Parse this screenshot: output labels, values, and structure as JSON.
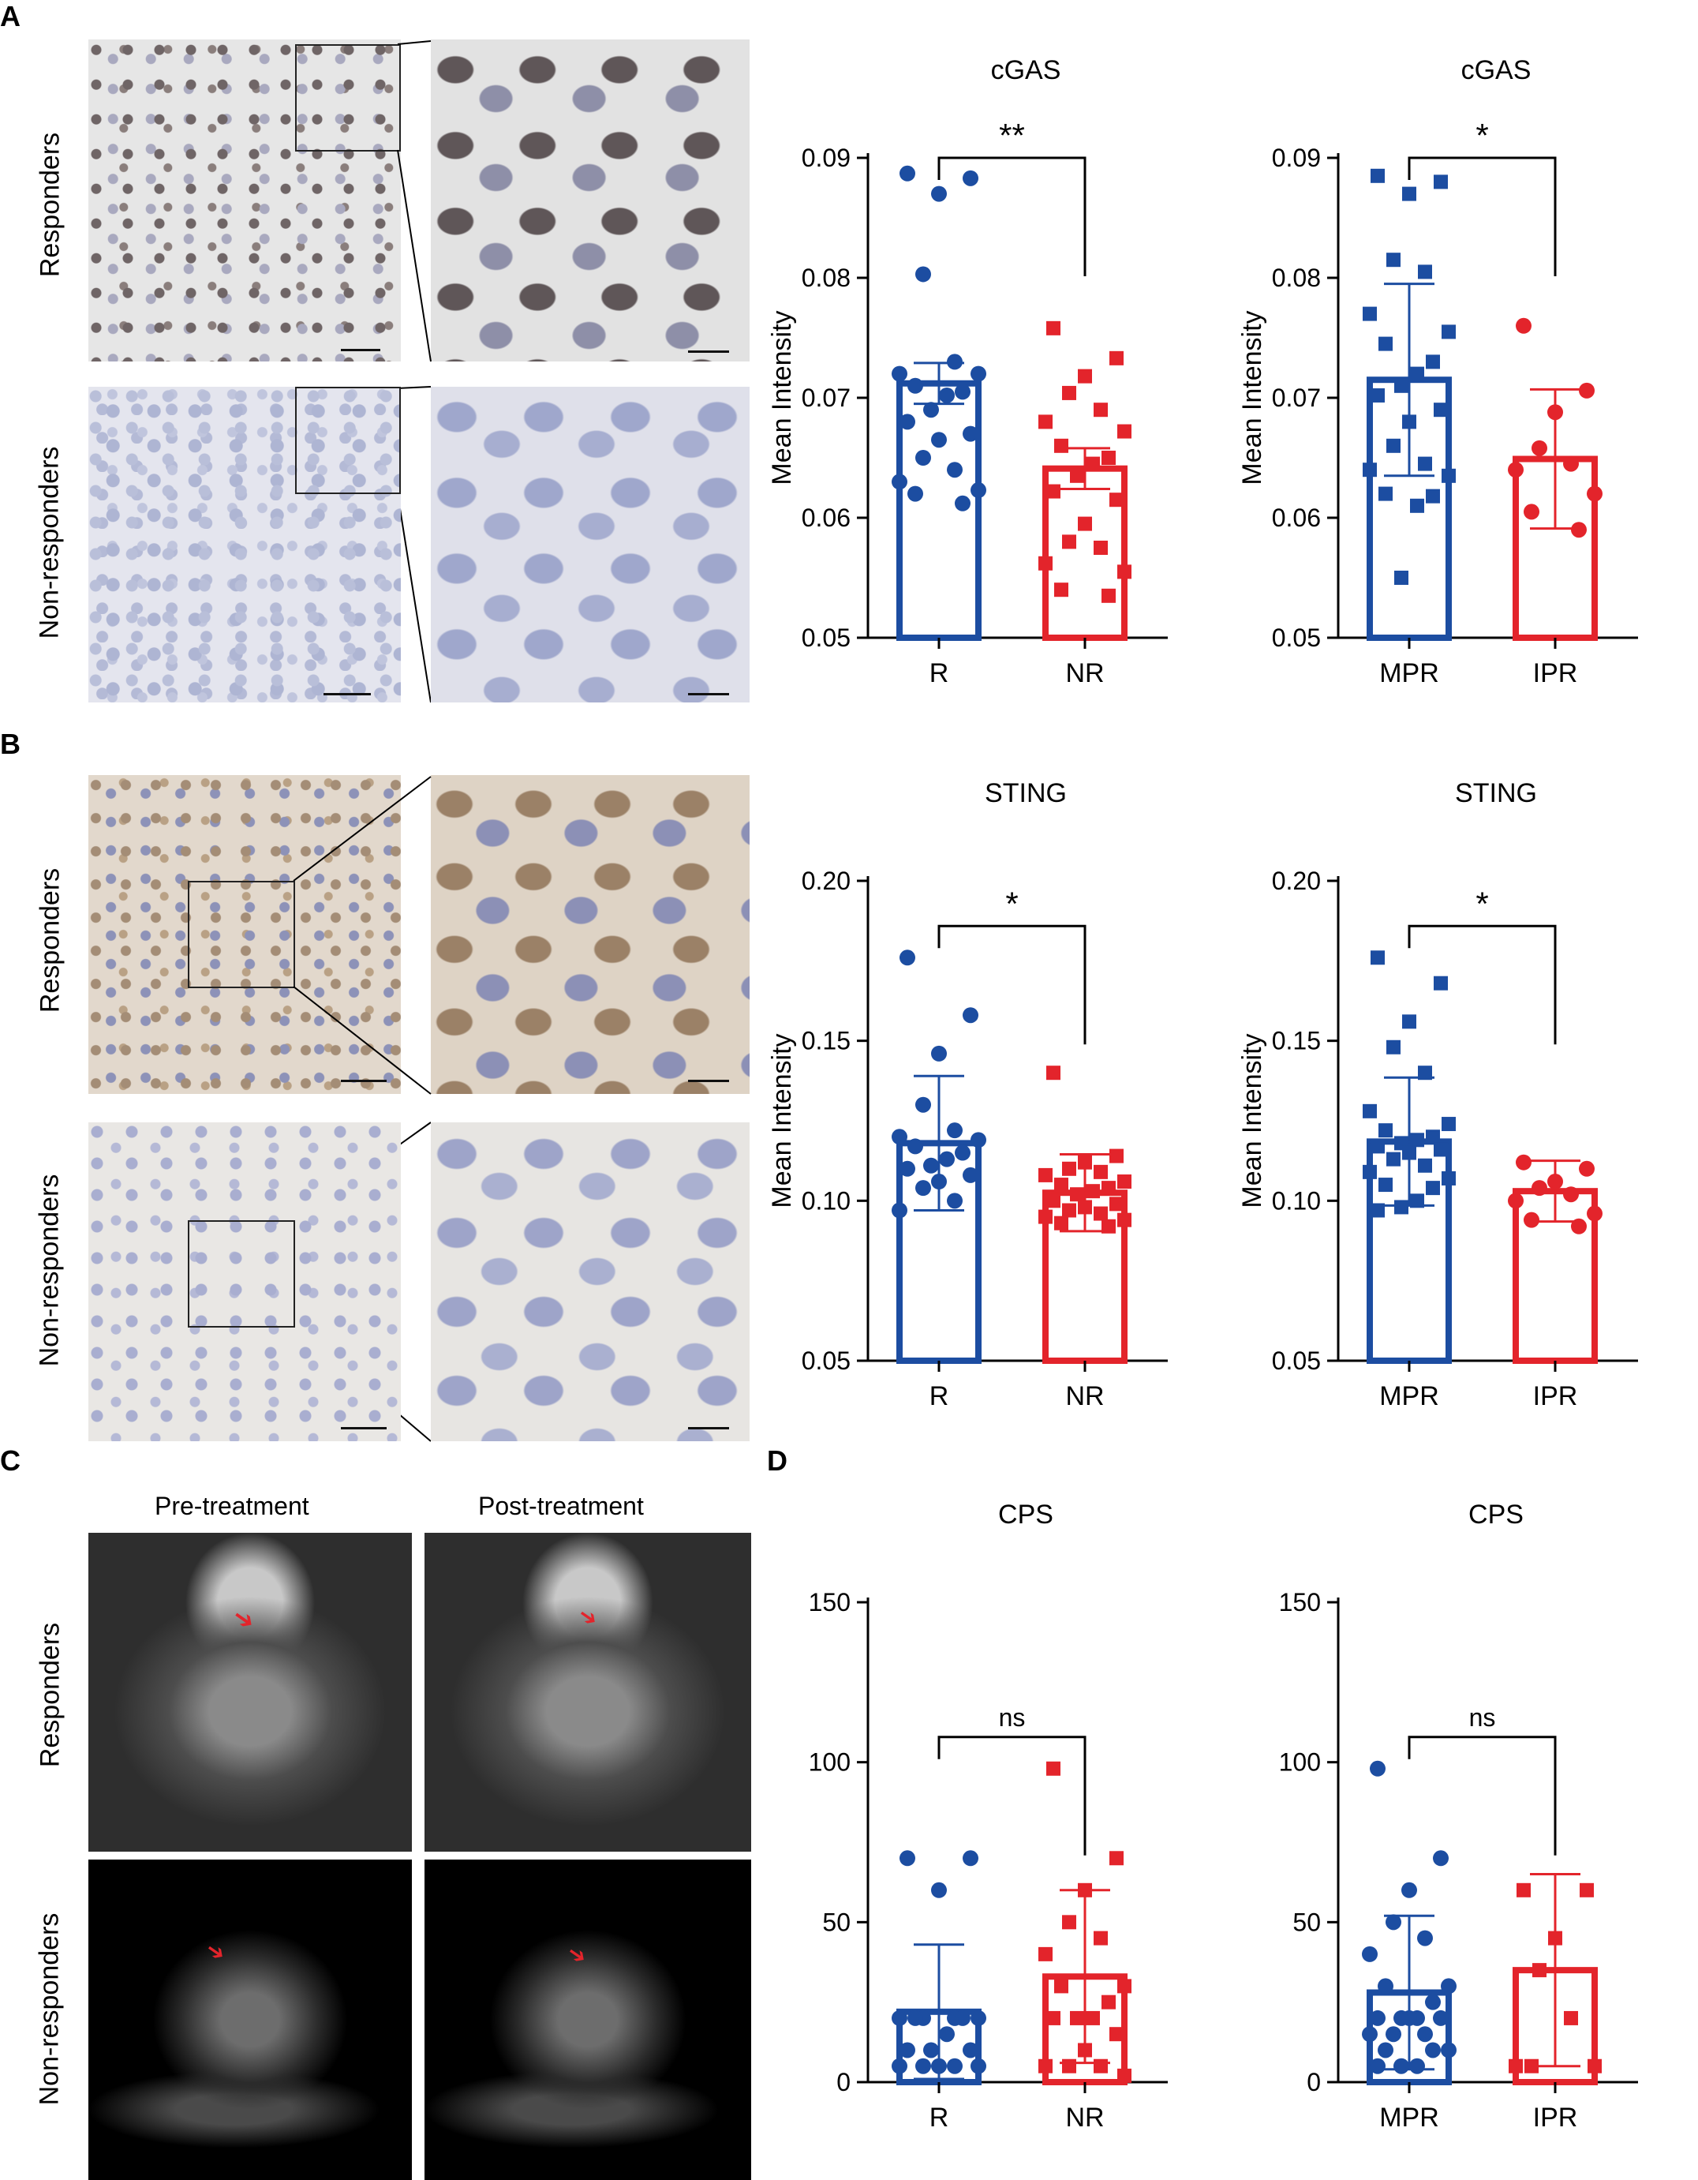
{
  "figure": {
    "panels": {
      "A": {
        "letter": "A",
        "row_labels": [
          "Responders",
          "Non-responders"
        ]
      },
      "B": {
        "letter": "B",
        "row_labels": [
          "Responders",
          "Non-responders"
        ]
      },
      "C": {
        "letter": "C",
        "col_labels": [
          "Pre-treatment",
          "Post-treatment"
        ],
        "row_labels": [
          "Responders",
          "Non-responders"
        ]
      },
      "D": {
        "letter": "D"
      }
    }
  },
  "colors": {
    "blue": "#1c4da1",
    "red": "#e3242b"
  },
  "chart_data": [
    {
      "id": "cgas_r_nr",
      "type": "bar",
      "title": "cGAS",
      "ylabel": "Mean Intensity",
      "categories": [
        "R",
        "NR"
      ],
      "markers": [
        "circle",
        "square"
      ],
      "ylim": [
        0.05,
        0.09
      ],
      "yticks": [
        "0.05",
        "0.06",
        "0.07",
        "0.08",
        "0.09"
      ],
      "means": [
        0.0712,
        0.0641
      ],
      "err": [
        0.0017,
        0.0017
      ],
      "significance": "**",
      "points": [
        [
          0.0887,
          0.0883,
          0.087,
          0.0803,
          0.073,
          0.072,
          0.072,
          0.071,
          0.0705,
          0.0702,
          0.069,
          0.068,
          0.067,
          0.0665,
          0.065,
          0.064,
          0.063,
          0.0623,
          0.062,
          0.0612
        ],
        [
          0.0758,
          0.0733,
          0.0718,
          0.0704,
          0.069,
          0.068,
          0.0672,
          0.066,
          0.065,
          0.0645,
          0.0635,
          0.0622,
          0.0615,
          0.0595,
          0.058,
          0.0575,
          0.0562,
          0.0555,
          0.054,
          0.0535
        ]
      ]
    },
    {
      "id": "cgas_mpr_ipr",
      "type": "bar",
      "title": "cGAS",
      "ylabel": "Mean Intensity",
      "categories": [
        "MPR",
        "IPR"
      ],
      "markers": [
        "square",
        "circle"
      ],
      "ylim": [
        0.05,
        0.09
      ],
      "yticks": [
        "0.05",
        "0.06",
        "0.07",
        "0.08",
        "0.09"
      ],
      "means": [
        0.0715,
        0.0649
      ],
      "err": [
        0.008,
        0.0058
      ],
      "significance": "*",
      "points": [
        [
          0.0885,
          0.088,
          0.087,
          0.0815,
          0.0805,
          0.077,
          0.0755,
          0.0745,
          0.073,
          0.072,
          0.071,
          0.0702,
          0.069,
          0.068,
          0.066,
          0.0645,
          0.064,
          0.0635,
          0.062,
          0.0618,
          0.061,
          0.055
        ],
        [
          0.076,
          0.0706,
          0.0688,
          0.0658,
          0.0645,
          0.064,
          0.062,
          0.0605,
          0.059
        ]
      ]
    },
    {
      "id": "sting_r_nr",
      "type": "bar",
      "title": "STING",
      "ylabel": "Mean Intensity",
      "categories": [
        "R",
        "NR"
      ],
      "markers": [
        "circle",
        "square"
      ],
      "ylim": [
        0.05,
        0.2
      ],
      "yticks": [
        "0.05",
        "0.10",
        "0.15",
        "0.20"
      ],
      "means": [
        0.118,
        0.1025
      ],
      "err": [
        0.021,
        0.012
      ],
      "significance": "*",
      "points": [
        [
          0.176,
          0.158,
          0.146,
          0.13,
          0.122,
          0.12,
          0.119,
          0.117,
          0.115,
          0.113,
          0.111,
          0.11,
          0.108,
          0.106,
          0.104,
          0.1,
          0.097
        ],
        [
          0.14,
          0.114,
          0.112,
          0.11,
          0.109,
          0.108,
          0.106,
          0.105,
          0.104,
          0.103,
          0.102,
          0.1,
          0.099,
          0.098,
          0.097,
          0.096,
          0.095,
          0.094,
          0.093,
          0.092
        ]
      ]
    },
    {
      "id": "sting_mpr_ipr",
      "type": "bar",
      "title": "STING",
      "ylabel": "Mean Intensity",
      "categories": [
        "MPR",
        "IPR"
      ],
      "markers": [
        "square",
        "circle"
      ],
      "ylim": [
        0.05,
        0.2
      ],
      "yticks": [
        "0.05",
        "0.10",
        "0.15",
        "0.20"
      ],
      "means": [
        0.1185,
        0.103
      ],
      "err": [
        0.02,
        0.0095
      ],
      "significance": "*",
      "points": [
        [
          0.176,
          0.168,
          0.156,
          0.148,
          0.14,
          0.128,
          0.124,
          0.122,
          0.12,
          0.119,
          0.118,
          0.117,
          0.116,
          0.115,
          0.113,
          0.111,
          0.109,
          0.107,
          0.105,
          0.104,
          0.1,
          0.098,
          0.097
        ],
        [
          0.112,
          0.11,
          0.106,
          0.104,
          0.102,
          0.1,
          0.096,
          0.094,
          0.092
        ]
      ]
    },
    {
      "id": "cps_r_nr",
      "type": "bar",
      "title": "CPS",
      "ylabel": "",
      "categories": [
        "R",
        "NR"
      ],
      "markers": [
        "circle",
        "square"
      ],
      "ylim": [
        0,
        150
      ],
      "yticks": [
        "0",
        "50",
        "100",
        "150"
      ],
      "means": [
        22,
        33
      ],
      "err": [
        21,
        27
      ],
      "significance": "ns",
      "points": [
        [
          70,
          70,
          60,
          20,
          20,
          20,
          20,
          20,
          20,
          15,
          10,
          10,
          10,
          5,
          5,
          5,
          5,
          5
        ],
        [
          98,
          70,
          60,
          50,
          45,
          40,
          30,
          30,
          25,
          20,
          20,
          20,
          15,
          10,
          5,
          5,
          5,
          2
        ]
      ]
    },
    {
      "id": "cps_mpr_ipr",
      "type": "bar",
      "title": "CPS",
      "ylabel": "",
      "categories": [
        "MPR",
        "IPR"
      ],
      "markers": [
        "circle",
        "square"
      ],
      "ylim": [
        0,
        150
      ],
      "yticks": [
        "0",
        "50",
        "100",
        "150"
      ],
      "means": [
        28,
        35
      ],
      "err": [
        24,
        30
      ],
      "significance": "ns",
      "points": [
        [
          98,
          70,
          60,
          50,
          45,
          40,
          30,
          30,
          25,
          20,
          20,
          20,
          20,
          20,
          15,
          15,
          15,
          10,
          10,
          10,
          5,
          5,
          5
        ],
        [
          60,
          60,
          45,
          35,
          20,
          5,
          5,
          5
        ]
      ]
    }
  ]
}
